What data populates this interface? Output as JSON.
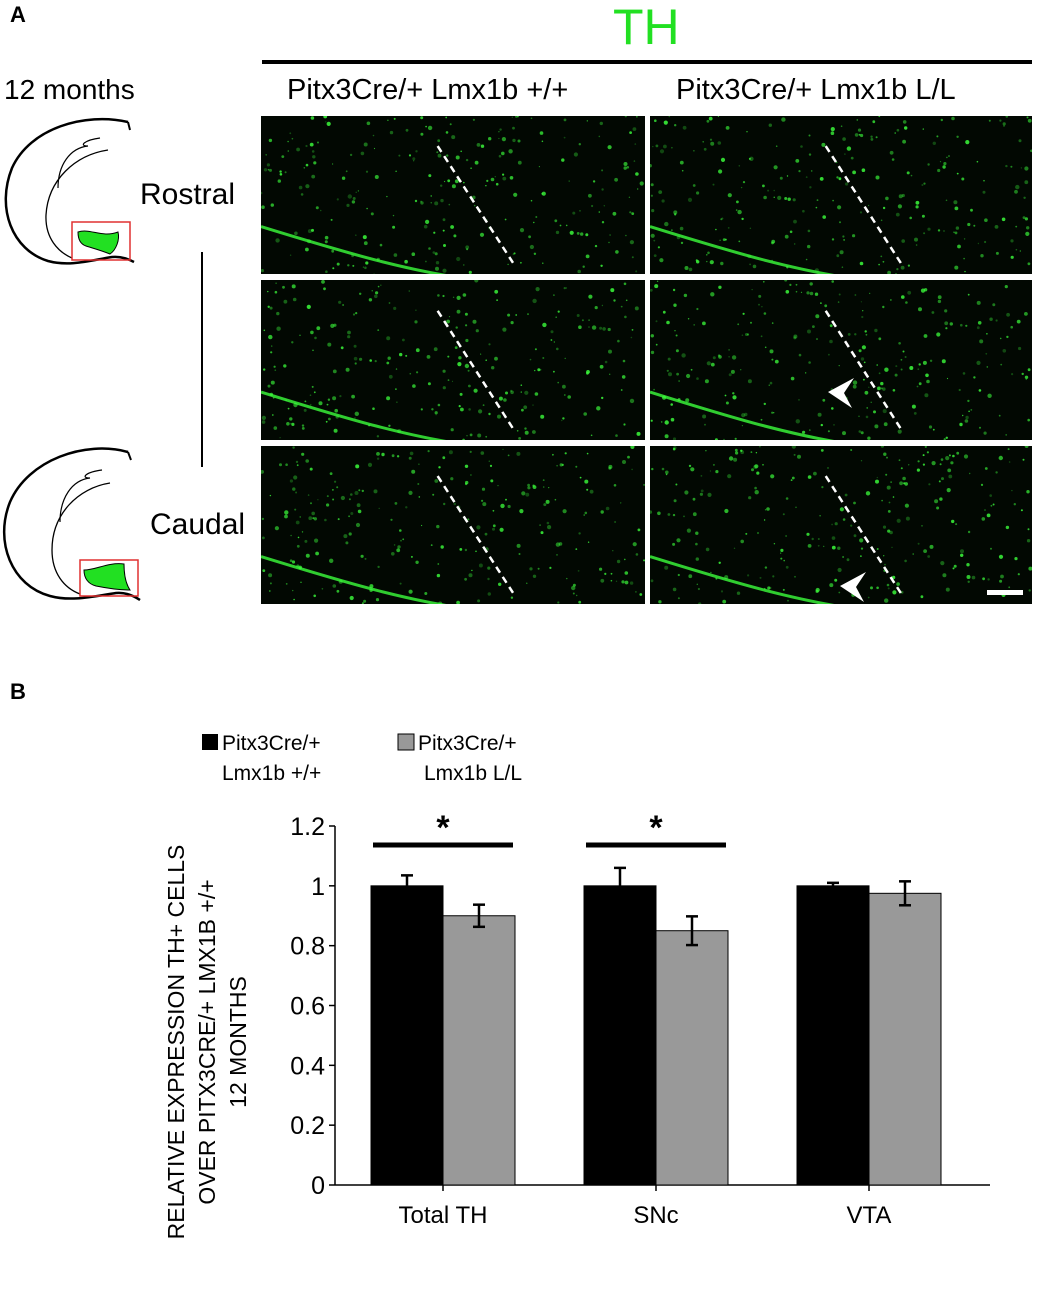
{
  "panel_a": {
    "label": "A",
    "marker": "TH",
    "age": "12 months",
    "rostral": "Rostral",
    "caudal": "Caudal",
    "col_left": "Pitx3Cre/+ Lmx1b +/+",
    "col_right": "Pitx3Cre/+ Lmx1b L/L",
    "colors": {
      "marker": "#22e022",
      "tissue": "#020802",
      "cells": "#3cff3c",
      "box": "#e03030"
    }
  },
  "panel_b": {
    "label": "B"
  },
  "chart_data": {
    "type": "bar",
    "categories": [
      "Total TH",
      "SNc",
      "VTA"
    ],
    "series": [
      {
        "name": "Pitx3Cre/+ Lmx1b +/+",
        "legend_lines": [
          "Pitx3Cre/+",
          "Lmx1b +/+"
        ],
        "color": "#000000",
        "values": [
          1.0,
          1.0,
          1.0
        ],
        "errors": [
          0.035,
          0.06,
          0.01
        ]
      },
      {
        "name": "Pitx3Cre/+ Lmx1b L/L",
        "legend_lines": [
          "Pitx3Cre/+",
          "Lmx1b L/L"
        ],
        "color": "#999999",
        "values": [
          0.9,
          0.85,
          0.975
        ],
        "errors": [
          0.037,
          0.048,
          0.04
        ]
      }
    ],
    "ylabel_lines": [
      "RELATIVE EXPRESSION TH+ CELLS",
      "OVER PITX3CRE/+ LMX1B +/+",
      "12 MONTHS"
    ],
    "ylim": [
      0,
      1.2
    ],
    "yticks": [
      "0",
      "0.2",
      "0.4",
      "0.6",
      "0.8",
      "1",
      "1.2"
    ],
    "significance": [
      {
        "category": "Total TH",
        "mark": "*"
      },
      {
        "category": "SNc",
        "mark": "*"
      }
    ],
    "legend_position": "top-left",
    "grid": false
  }
}
